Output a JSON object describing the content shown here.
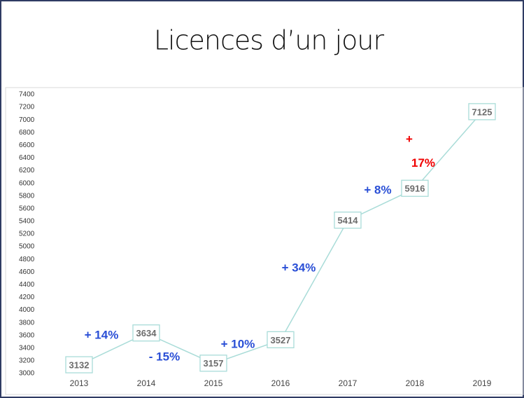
{
  "chart_data": {
    "type": "line",
    "title": "Licences d’un jour",
    "categories": [
      "2013",
      "2014",
      "2015",
      "2016",
      "2017",
      "2018",
      "2019"
    ],
    "values": [
      3132,
      3634,
      3157,
      3527,
      5414,
      5916,
      7125
    ],
    "color": "#a9dcd8",
    "ylim": [
      3000,
      7400
    ],
    "yticks": [
      3000,
      3200,
      3400,
      3600,
      3800,
      4000,
      4200,
      4400,
      4600,
      4800,
      5000,
      5200,
      5400,
      5600,
      5800,
      6000,
      6200,
      6400,
      6600,
      6800,
      7000,
      7200,
      7400
    ],
    "annotations": [
      {
        "text": "+ 14%",
        "color": "#2a4fd6"
      },
      {
        "text": "- 15%",
        "color": "#2a4fd6"
      },
      {
        "text": "+ 10%",
        "color": "#2a4fd6"
      },
      {
        "text": "+ 34%",
        "color": "#2a4fd6"
      },
      {
        "text": "+ 8%",
        "color": "#2a4fd6"
      },
      {
        "text": "+ 17%",
        "color": "#f00000"
      }
    ]
  }
}
